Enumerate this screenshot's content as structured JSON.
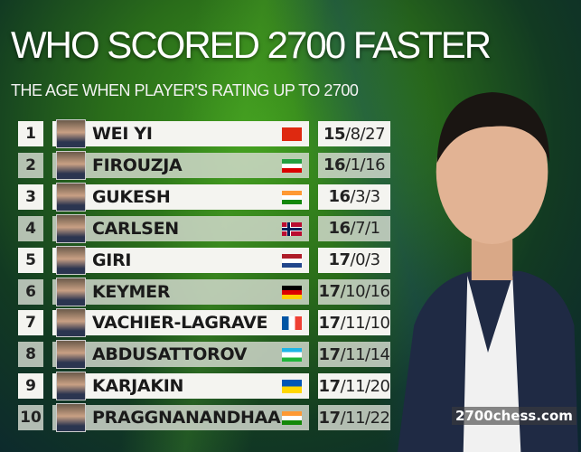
{
  "title": "WHO SCORED 2700 FASTER",
  "subtitle": "THE AGE WHEN PLAYER'S RATING UP TO 2700",
  "watermark": "2700chess.com",
  "rows": [
    {
      "rank": "1",
      "name": "WEI YI",
      "flag": "china",
      "years": "15",
      "rest": "/8/27"
    },
    {
      "rank": "2",
      "name": "FIROUZJA",
      "flag": "iran",
      "years": "16",
      "rest": "/1/16"
    },
    {
      "rank": "3",
      "name": "GUKESH",
      "flag": "india",
      "years": "16",
      "rest": "/3/3"
    },
    {
      "rank": "4",
      "name": "CARLSEN",
      "flag": "norway",
      "years": "16",
      "rest": "/7/1"
    },
    {
      "rank": "5",
      "name": "GIRI",
      "flag": "netherlands",
      "years": "17",
      "rest": "/0/3"
    },
    {
      "rank": "6",
      "name": "KEYMER",
      "flag": "germany",
      "years": "17",
      "rest": "/10/16"
    },
    {
      "rank": "7",
      "name": "VACHIER-LAGRAVE",
      "flag": "france",
      "years": "17",
      "rest": "/11/10"
    },
    {
      "rank": "8",
      "name": "ABDUSATTOROV",
      "flag": "uzbekistan",
      "years": "17",
      "rest": "/11/14"
    },
    {
      "rank": "9",
      "name": "KARJAKIN",
      "flag": "ukraine",
      "years": "17",
      "rest": "/11/20"
    },
    {
      "rank": "10",
      "name": "PRAGGNANANDHAA",
      "flag": "india",
      "years": "17",
      "rest": "/11/22"
    }
  ]
}
